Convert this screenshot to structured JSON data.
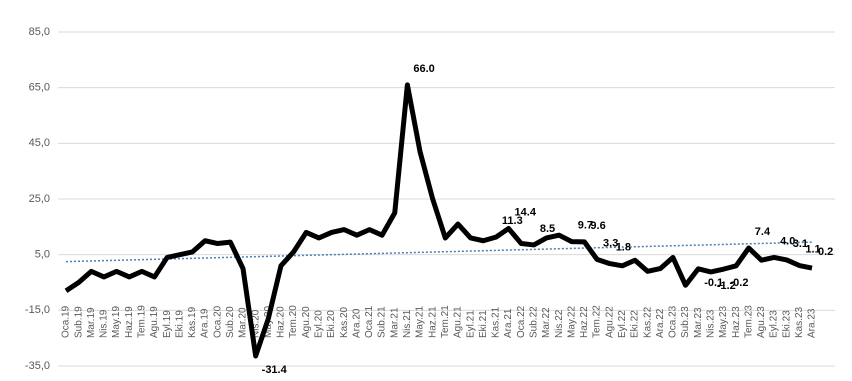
{
  "chart_data": {
    "type": "line",
    "categories": [
      "Oca.19",
      "Sub.19",
      "Mar.19",
      "Nis.19",
      "May.19",
      "Haz.19",
      "Tem.19",
      "Agu.19",
      "Eyl.19",
      "Eki.19",
      "Kas.19",
      "Ara.19",
      "Oca.20",
      "Sub.20",
      "Mar.20",
      "Nis.20",
      "May.20",
      "Haz.20",
      "Tem.20",
      "Agu.20",
      "Eyl.20",
      "Eki.20",
      "Kas.20",
      "Ara.20",
      "Oca.21",
      "Sub.21",
      "Mar.21",
      "Nis.21",
      "May.21",
      "Haz.21",
      "Tem.21",
      "Agu.21",
      "Eyl.21",
      "Eki.21",
      "Kas.21",
      "Ara.21",
      "Oca.22",
      "Sub.22",
      "Mar.22",
      "Nis.22",
      "May.22",
      "Haz.22",
      "Tem.22",
      "Agu.22",
      "Eyl.22",
      "Eki.22",
      "Kas.22",
      "Ara.22",
      "Oca.23",
      "Sub.23",
      "Mar.23",
      "Nis.23",
      "May.23",
      "Haz.23",
      "Tem.23",
      "Agu.23",
      "Eyl.23",
      "Eki.23",
      "Kas.23",
      "Ara.23"
    ],
    "values": [
      -8,
      -5,
      -1,
      -3,
      -1,
      -3,
      -1,
      -3,
      4,
      5,
      6,
      10,
      9,
      9.5,
      0,
      -31.4,
      -18,
      1,
      6,
      13,
      11,
      13,
      14,
      12,
      14,
      12,
      20,
      66.0,
      42,
      25,
      11,
      16,
      11,
      10,
      11.3,
      14.4,
      9,
      8.5,
      11,
      12,
      9.7,
      9.6,
      3.3,
      1.8,
      1,
      3,
      -1,
      0,
      4,
      -6,
      -0.1,
      -1.2,
      -0.2,
      1,
      7.4,
      3,
      4.0,
      3.1,
      1.1,
      0.2
    ],
    "value_labels": [
      null,
      null,
      null,
      null,
      null,
      null,
      null,
      null,
      null,
      null,
      null,
      null,
      null,
      null,
      null,
      "-31.4",
      null,
      null,
      null,
      null,
      null,
      null,
      null,
      null,
      null,
      null,
      null,
      "66.0",
      null,
      null,
      null,
      null,
      null,
      null,
      "11.3",
      "14.4",
      null,
      "8.5",
      null,
      null,
      "9.7",
      "9.6",
      "3.3",
      "1.8",
      null,
      null,
      null,
      null,
      null,
      null,
      "-0.1",
      "-1.2",
      "-0.2",
      null,
      "7.4",
      null,
      "4.0",
      "3.1",
      "1.1",
      "0.2"
    ],
    "color": "#000000",
    "trendline": {
      "color": "#4a7ebb",
      "values": [
        2.5,
        9.5
      ]
    },
    "ylim": [
      -35,
      85
    ],
    "yticks": [
      {
        "value": -35,
        "label": "-35,0"
      },
      {
        "value": -15,
        "label": "-15,0"
      },
      {
        "value": 5,
        "label": "5,0"
      },
      {
        "value": 25,
        "label": "25,0"
      },
      {
        "value": 45,
        "label": "45,0"
      },
      {
        "value": 65,
        "label": "65,0"
      },
      {
        "value": 85,
        "label": "85,0"
      }
    ],
    "grid": true
  }
}
